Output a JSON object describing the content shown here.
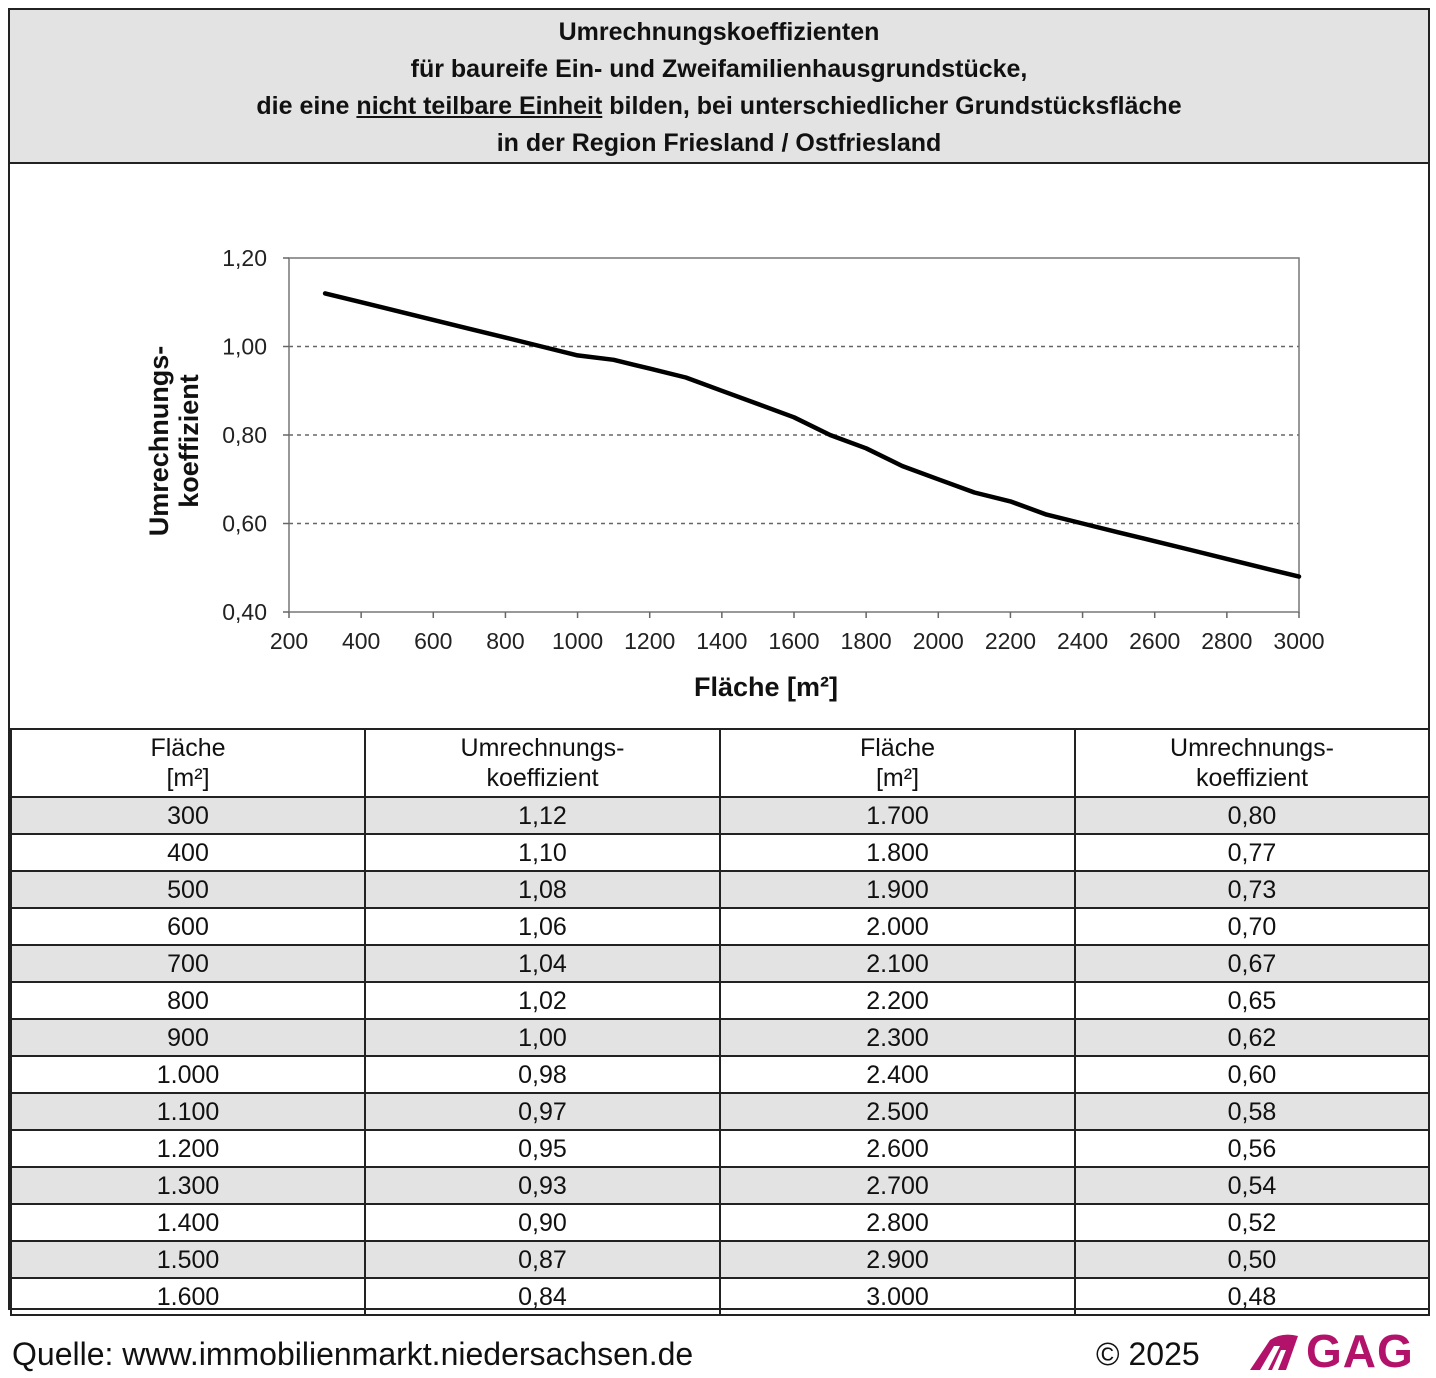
{
  "header": {
    "line1": "Umrechnungskoeffizienten",
    "line2": "für baureife Ein- und Zweifamilienhausgrundstücke,",
    "line3_pre": "die eine ",
    "line3_underlined": "nicht teilbare Einheit",
    "line3_post": " bilden, bei unterschiedlicher Grundstücksfläche",
    "line4": "in der Region Friesland / Ostfriesland"
  },
  "chart_data": {
    "type": "line",
    "xlabel": "Fläche [m²]",
    "ylabel_line1": "Umrechnungs-",
    "ylabel_line2": "koeffizient",
    "xlim": [
      200,
      3000
    ],
    "ylim": [
      0.4,
      1.2
    ],
    "x_ticks": [
      200,
      400,
      600,
      800,
      1000,
      1200,
      1400,
      1600,
      1800,
      2000,
      2200,
      2400,
      2600,
      2800,
      3000
    ],
    "x_tick_labels": [
      "200",
      "400",
      "600",
      "800",
      "1000",
      "1200",
      "1400",
      "1600",
      "1800",
      "2000",
      "2200",
      "2400",
      "2600",
      "2800",
      "3000"
    ],
    "y_ticks": [
      0.4,
      0.6,
      0.8,
      1.0,
      1.2
    ],
    "y_tick_labels": [
      "0,40",
      "0,60",
      "0,80",
      "1,00",
      "1,20"
    ],
    "grid": "horizontal dashed",
    "series": [
      {
        "x": [
          300,
          400,
          500,
          600,
          700,
          800,
          900,
          1000,
          1100,
          1200,
          1300,
          1400,
          1500,
          1600,
          1700,
          1800,
          1900,
          2000,
          2100,
          2200,
          2300,
          2400,
          2500,
          2600,
          2700,
          2800,
          2900,
          3000
        ],
        "values": [
          1.12,
          1.1,
          1.08,
          1.06,
          1.04,
          1.02,
          1.0,
          0.98,
          0.97,
          0.95,
          0.93,
          0.9,
          0.87,
          0.84,
          0.8,
          0.77,
          0.73,
          0.7,
          0.67,
          0.65,
          0.62,
          0.6,
          0.58,
          0.56,
          0.54,
          0.52,
          0.5,
          0.48
        ]
      }
    ]
  },
  "table": {
    "headers": [
      {
        "line1": "Fläche",
        "line2": "[m²]"
      },
      {
        "line1": "Umrechnungs-",
        "line2": "koeffizient"
      },
      {
        "line1": "Fläche",
        "line2": "[m²]"
      },
      {
        "line1": "Umrechnungs-",
        "line2": "koeffizient"
      }
    ],
    "rows": [
      [
        "300",
        "1,12",
        "1.700",
        "0,80"
      ],
      [
        "400",
        "1,10",
        "1.800",
        "0,77"
      ],
      [
        "500",
        "1,08",
        "1.900",
        "0,73"
      ],
      [
        "600",
        "1,06",
        "2.000",
        "0,70"
      ],
      [
        "700",
        "1,04",
        "2.100",
        "0,67"
      ],
      [
        "800",
        "1,02",
        "2.200",
        "0,65"
      ],
      [
        "900",
        "1,00",
        "2.300",
        "0,62"
      ],
      [
        "1.000",
        "0,98",
        "2.400",
        "0,60"
      ],
      [
        "1.100",
        "0,97",
        "2.500",
        "0,58"
      ],
      [
        "1.200",
        "0,95",
        "2.600",
        "0,56"
      ],
      [
        "1.300",
        "0,93",
        "2.700",
        "0,54"
      ],
      [
        "1.400",
        "0,90",
        "2.800",
        "0,52"
      ],
      [
        "1.500",
        "0,87",
        "2.900",
        "0,50"
      ],
      [
        "1.600",
        "0,84",
        "3.000",
        "0,48"
      ]
    ]
  },
  "footer": {
    "source": "Quelle: www.immobilienmarkt.niedersachsen.de",
    "copyright": "© 2025",
    "logo_text": "GAG",
    "brand_color": "#b3126b"
  }
}
